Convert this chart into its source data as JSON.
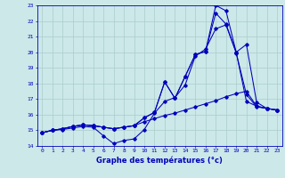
{
  "xlabel": "Graphe des températures (°c)",
  "xlim": [
    -0.5,
    23.5
  ],
  "ylim": [
    14,
    23
  ],
  "xticks": [
    0,
    1,
    2,
    3,
    4,
    5,
    6,
    7,
    8,
    9,
    10,
    11,
    12,
    13,
    14,
    15,
    16,
    17,
    18,
    19,
    20,
    21,
    22,
    23
  ],
  "yticks": [
    14,
    15,
    16,
    17,
    18,
    19,
    20,
    21,
    22,
    23
  ],
  "background_color": "#cce8e8",
  "line_color": "#0000bb",
  "grid_color": "#aacccc",
  "lines": [
    [
      14.85,
      15.0,
      15.05,
      15.15,
      15.25,
      15.2,
      14.65,
      14.15,
      14.35,
      14.45,
      15.05,
      16.1,
      16.85,
      17.1,
      17.9,
      19.75,
      20.2,
      21.5,
      21.75,
      19.95,
      17.3,
      16.5,
      16.4,
      16.3
    ],
    [
      14.85,
      15.0,
      15.1,
      15.25,
      15.35,
      15.3,
      15.2,
      15.1,
      15.2,
      15.3,
      15.55,
      15.75,
      15.95,
      16.1,
      16.3,
      16.5,
      16.7,
      16.9,
      17.15,
      17.35,
      17.5,
      16.55,
      16.4,
      16.3
    ],
    [
      14.85,
      15.0,
      15.1,
      15.25,
      15.35,
      15.3,
      15.2,
      15.1,
      15.2,
      15.3,
      15.8,
      16.15,
      18.1,
      17.05,
      18.45,
      19.85,
      20.05,
      23.0,
      22.65,
      20.0,
      20.5,
      16.8,
      16.4,
      16.3
    ],
    [
      14.85,
      15.0,
      15.1,
      15.25,
      15.35,
      15.3,
      15.2,
      15.1,
      15.2,
      15.3,
      15.8,
      16.15,
      18.1,
      17.05,
      18.45,
      19.85,
      20.05,
      22.5,
      21.8,
      20.0,
      16.85,
      16.55,
      16.4,
      16.3
    ]
  ]
}
